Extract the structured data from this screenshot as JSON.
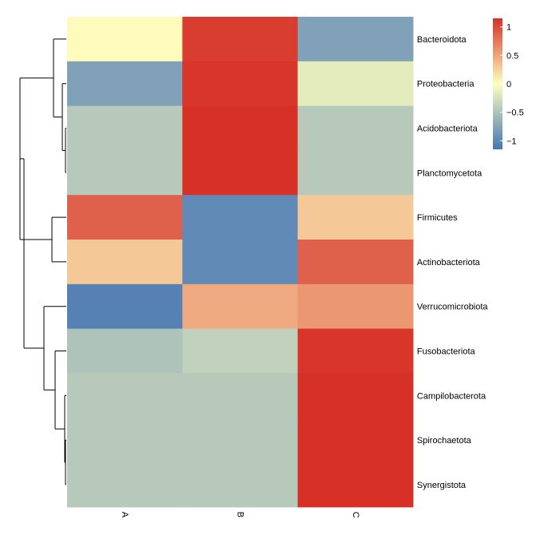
{
  "chart_data": {
    "type": "heatmap",
    "rows": [
      "Bacteroidota",
      "Proteobacteria",
      "Acidobacteriota",
      "Planctomycetota",
      "Firmicutes",
      "Actinobacteriota",
      "Verrucomicrobiota",
      "Fusobacteriota",
      "Campilobacterota",
      "Spirochaetota",
      "Synergistota"
    ],
    "columns": [
      "A",
      "B",
      "C"
    ],
    "values": [
      [
        0.02,
        1.08,
        -0.78
      ],
      [
        -0.78,
        1.12,
        -0.17
      ],
      [
        -0.45,
        1.15,
        -0.45
      ],
      [
        -0.45,
        1.15,
        -0.45
      ],
      [
        0.88,
        -0.98,
        0.3
      ],
      [
        0.3,
        -0.98,
        0.88
      ],
      [
        -1.05,
        0.48,
        0.58
      ],
      [
        -0.5,
        -0.38,
        1.12
      ],
      [
        -0.45,
        -0.45,
        1.15
      ],
      [
        -0.45,
        -0.45,
        1.15
      ],
      [
        -0.45,
        -0.45,
        1.15
      ]
    ],
    "color_scale": {
      "min": -1.15,
      "max": 1.15,
      "low_color": "#4575b4",
      "mid_color": "#ffffbf",
      "high_color": "#d73027"
    },
    "legend": {
      "position": "top-right",
      "ticks": [
        1,
        0.5,
        0,
        -0.5,
        -1
      ],
      "tick_labels": [
        "1",
        "0.5",
        "0",
        "−0.5",
        "−1"
      ]
    },
    "row_dendrogram": true,
    "row_label_position": "right",
    "column_labels_rotated": true
  }
}
